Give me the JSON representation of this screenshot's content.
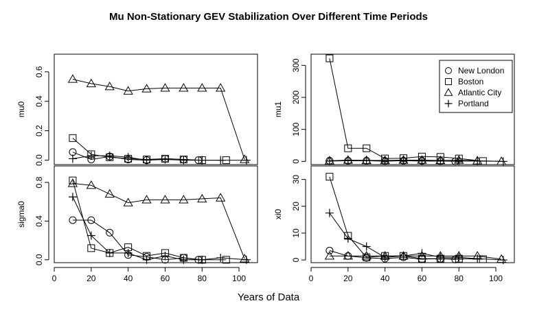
{
  "title": "Mu Non-Stationary GEV Stabilization Over Different Time Periods",
  "xlabel": "Years of Data",
  "legend": {
    "placement": "top-right of upper-right panel",
    "entries": [
      {
        "label": "New London",
        "symbol": "circle"
      },
      {
        "label": "Boston",
        "symbol": "square"
      },
      {
        "label": "Atlantic City",
        "symbol": "triangle"
      },
      {
        "label": "Portland",
        "symbol": "plus"
      }
    ]
  },
  "chart_data": [
    {
      "type": "line",
      "panel": "top-left",
      "ylabel": "mu0",
      "xlim": [
        0,
        110
      ],
      "ylim": [
        -0.03,
        0.72
      ],
      "xticks": [
        0,
        20,
        40,
        60,
        80,
        100
      ],
      "yticks": [
        0.0,
        0.2,
        0.4,
        0.6
      ],
      "ytick_labels": [
        "0.0",
        "0.2",
        "0.4",
        "0.6"
      ],
      "show_xtick_labels": false,
      "series": [
        {
          "name": "New London",
          "symbol": "circle",
          "x": [
            10,
            20,
            30,
            40,
            50,
            60,
            70,
            78
          ],
          "y": [
            0.055,
            0.005,
            0.025,
            0.005,
            0.0,
            0.01,
            0.005,
            0.0
          ]
        },
        {
          "name": "Boston",
          "symbol": "square",
          "x": [
            10,
            20,
            30,
            40,
            50,
            60,
            70,
            80,
            93
          ],
          "y": [
            0.15,
            0.04,
            0.02,
            0.01,
            0.005,
            0.01,
            0.005,
            0.0,
            0.0
          ]
        },
        {
          "name": "Atlantic City",
          "symbol": "triangle",
          "x": [
            10,
            20,
            30,
            40,
            50,
            60,
            70,
            80,
            90,
            103
          ],
          "y": [
            0.55,
            0.52,
            0.5,
            0.47,
            0.485,
            0.49,
            0.49,
            0.49,
            0.49,
            0.005
          ]
        },
        {
          "name": "Portland",
          "symbol": "plus",
          "x": [
            10,
            20,
            30,
            40,
            50,
            60,
            70,
            80,
            90,
            104
          ],
          "y": [
            0.01,
            0.03,
            0.03,
            0.02,
            0.0,
            0.005,
            0.0,
            0.0,
            0.0,
            0.0
          ]
        }
      ]
    },
    {
      "type": "line",
      "panel": "top-right",
      "ylabel": "mu1",
      "xlim": [
        0,
        110
      ],
      "ylim": [
        -10,
        335
      ],
      "xticks": [
        0,
        20,
        40,
        60,
        80,
        100
      ],
      "yticks": [
        0,
        100,
        200,
        300
      ],
      "ytick_labels": [
        "0",
        "100",
        "200",
        "300"
      ],
      "show_xtick_labels": false,
      "series": [
        {
          "name": "New London",
          "symbol": "circle",
          "x": [
            10,
            20,
            30,
            40,
            50,
            60,
            70,
            78
          ],
          "y": [
            2,
            2,
            2,
            1,
            2,
            2,
            1,
            0
          ]
        },
        {
          "name": "Boston",
          "symbol": "square",
          "x": [
            10,
            20,
            30,
            40,
            50,
            60,
            70,
            80,
            93
          ],
          "y": [
            322,
            41,
            41,
            9,
            10,
            15,
            14,
            9,
            1
          ]
        },
        {
          "name": "Atlantic City",
          "symbol": "triangle",
          "x": [
            10,
            20,
            30,
            40,
            50,
            60,
            70,
            80,
            90,
            103
          ],
          "y": [
            2,
            4,
            3,
            3,
            4,
            4,
            3,
            4,
            2,
            0
          ]
        },
        {
          "name": "Portland",
          "symbol": "plus",
          "x": [
            10,
            20,
            30,
            40,
            50,
            60,
            70,
            80,
            90,
            104
          ],
          "y": [
            1,
            2,
            2,
            1,
            2,
            1,
            1,
            1,
            1,
            0
          ]
        }
      ]
    },
    {
      "type": "line",
      "panel": "bottom-left",
      "ylabel": "sigma0",
      "xlim": [
        0,
        110
      ],
      "ylim": [
        -0.03,
        0.97
      ],
      "xticks": [
        0,
        20,
        40,
        60,
        80,
        100
      ],
      "yticks": [
        0.0,
        0.4,
        0.8
      ],
      "ytick_labels": [
        "0.0",
        "0.4",
        "0.8"
      ],
      "show_xtick_labels": true,
      "series": [
        {
          "name": "New London",
          "symbol": "circle",
          "x": [
            10,
            20,
            30,
            40,
            50,
            60,
            70,
            78
          ],
          "y": [
            0.41,
            0.41,
            0.28,
            0.05,
            0.03,
            0.0,
            0.02,
            0.0
          ]
        },
        {
          "name": "Boston",
          "symbol": "square",
          "x": [
            10,
            20,
            30,
            40,
            50,
            60,
            70,
            80,
            93
          ],
          "y": [
            0.82,
            0.12,
            0.07,
            0.13,
            0.04,
            0.07,
            0.02,
            0.0,
            0.0
          ]
        },
        {
          "name": "Atlantic City",
          "symbol": "triangle",
          "x": [
            10,
            20,
            30,
            40,
            50,
            60,
            70,
            80,
            90,
            103
          ],
          "y": [
            0.79,
            0.77,
            0.68,
            0.59,
            0.62,
            0.62,
            0.62,
            0.63,
            0.64,
            0.01
          ]
        },
        {
          "name": "Portland",
          "symbol": "plus",
          "x": [
            10,
            20,
            30,
            40,
            50,
            60,
            70,
            80,
            90,
            104
          ],
          "y": [
            0.65,
            0.25,
            0.07,
            0.07,
            0.0,
            0.04,
            0.0,
            0.0,
            0.02,
            0.0
          ]
        }
      ]
    },
    {
      "type": "line",
      "panel": "bottom-right",
      "ylabel": "xi0",
      "xlim": [
        0,
        110
      ],
      "ylim": [
        -1,
        35
      ],
      "xticks": [
        0,
        20,
        40,
        60,
        80,
        100
      ],
      "yticks": [
        0,
        10,
        20,
        30
      ],
      "ytick_labels": [
        "0",
        "10",
        "20",
        "30"
      ],
      "show_xtick_labels": true,
      "series": [
        {
          "name": "New London",
          "symbol": "circle",
          "x": [
            10,
            20,
            30,
            40,
            50,
            60,
            70,
            78
          ],
          "y": [
            3.5,
            1.5,
            0.8,
            0.5,
            1.0,
            0.3,
            0.5,
            0.2
          ]
        },
        {
          "name": "Boston",
          "symbol": "square",
          "x": [
            10,
            20,
            30,
            40,
            50,
            60,
            70,
            80,
            93
          ],
          "y": [
            31,
            9,
            1.0,
            1.5,
            1.5,
            0.5,
            0.5,
            0.5,
            0.3
          ]
        },
        {
          "name": "Atlantic City",
          "symbol": "triangle",
          "x": [
            10,
            20,
            30,
            40,
            50,
            60,
            70,
            80,
            90,
            103
          ],
          "y": [
            1.5,
            1.5,
            1.5,
            1.5,
            1.5,
            1.5,
            1.5,
            1.5,
            1.5,
            0.3
          ]
        },
        {
          "name": "Portland",
          "symbol": "plus",
          "x": [
            10,
            20,
            30,
            40,
            50,
            60,
            70,
            80,
            90,
            104
          ],
          "y": [
            17.5,
            8,
            5,
            1,
            1.5,
            2.5,
            1,
            1,
            0.5,
            0
          ]
        }
      ]
    }
  ]
}
